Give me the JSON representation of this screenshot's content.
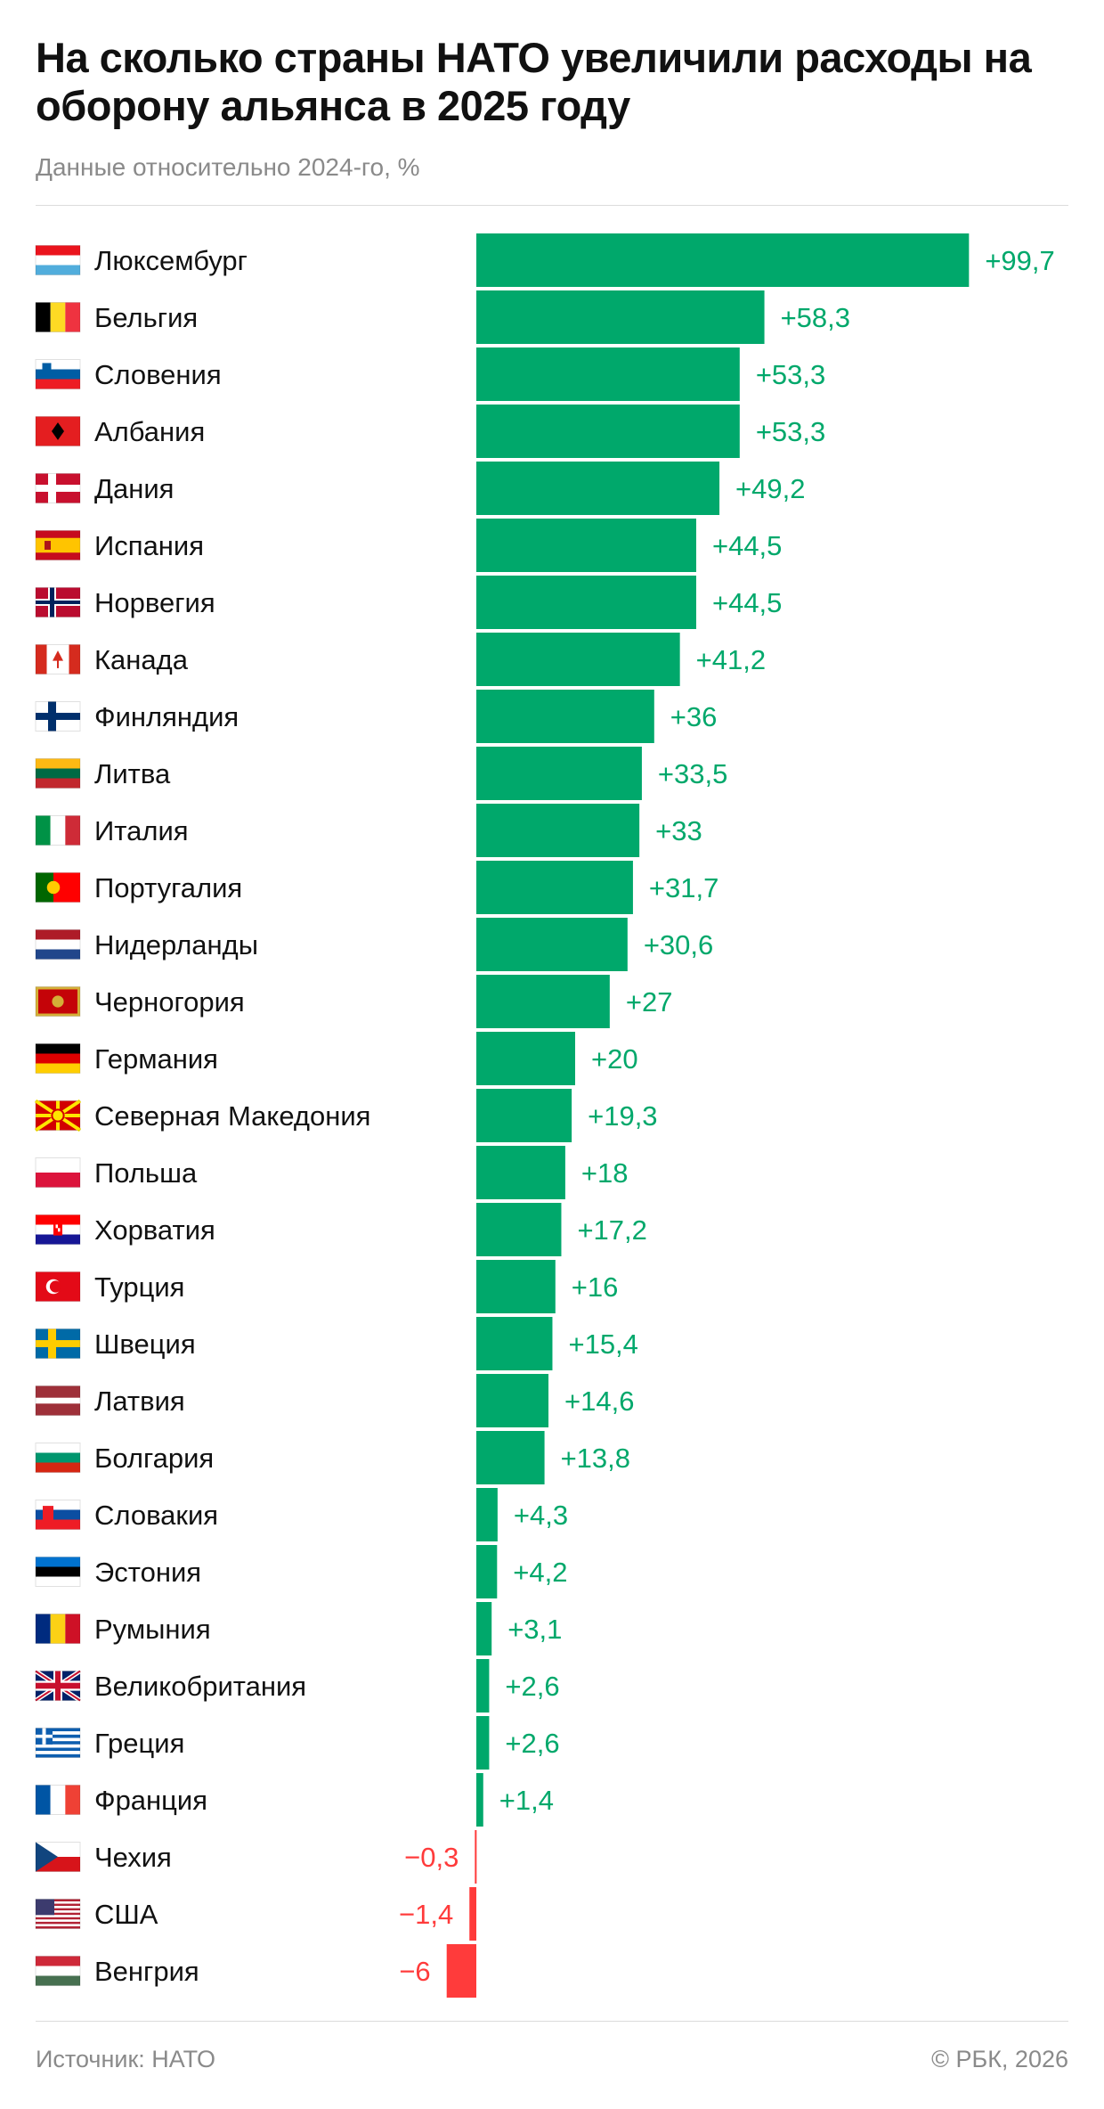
{
  "title": "На сколько страны НАТО увеличили расходы на оборону альянса в 2025 году",
  "subtitle": "Данные относительно 2024-го, %",
  "footer": {
    "source": "Источник: НАТО",
    "copyright": "© РБК, 2026"
  },
  "colors": {
    "positive": "#00a86b",
    "negative": "#ff3b3b",
    "text": "#111111",
    "muted": "#8a8a8a"
  },
  "chart_data": {
    "type": "bar",
    "orientation": "horizontal",
    "title": "На сколько страны НАТО увеличили расходы на оборону альянса в 2025 году",
    "subtitle": "Данные относительно 2024-го, %",
    "categories": [
      "Люксембург",
      "Бельгия",
      "Словения",
      "Албания",
      "Дания",
      "Испания",
      "Норвегия",
      "Канада",
      "Финляндия",
      "Литва",
      "Италия",
      "Португалия",
      "Нидерланды",
      "Черногория",
      "Германия",
      "Северная Македония",
      "Польша",
      "Хорватия",
      "Турция",
      "Швеция",
      "Латвия",
      "Болгария",
      "Словакия",
      "Эстония",
      "Румыния",
      "Великобритания",
      "Греция",
      "Франция",
      "Чехия",
      "США",
      "Венгрия"
    ],
    "values": [
      99.7,
      58.3,
      53.3,
      53.3,
      49.2,
      44.5,
      44.5,
      41.2,
      36,
      33.5,
      33,
      31.7,
      30.6,
      27,
      20,
      19.3,
      18,
      17.2,
      16,
      15.4,
      14.6,
      13.8,
      4.3,
      4.2,
      3.1,
      2.6,
      2.6,
      1.4,
      -0.3,
      -1.4,
      -6
    ],
    "value_labels": [
      "+99,7",
      "+58,3",
      "+53,3",
      "+53,3",
      "+49,2",
      "+44,5",
      "+44,5",
      "+41,2",
      "+36",
      "+33,5",
      "+33",
      "+31,7",
      "+30,6",
      "+27",
      "+20",
      "+19,3",
      "+18",
      "+17,2",
      "+16",
      "+15,4",
      "+14,6",
      "+13,8",
      "+4,3",
      "+4,2",
      "+3,1",
      "+2,6",
      "+2,6",
      "+1,4",
      "−0,3",
      "−1,4",
      "−6"
    ],
    "flag_icons": [
      "flag-luxembourg-icon",
      "flag-belgium-icon",
      "flag-slovenia-icon",
      "flag-albania-icon",
      "flag-denmark-icon",
      "flag-spain-icon",
      "flag-norway-icon",
      "flag-canada-icon",
      "flag-finland-icon",
      "flag-lithuania-icon",
      "flag-italy-icon",
      "flag-portugal-icon",
      "flag-netherlands-icon",
      "flag-montenegro-icon",
      "flag-germany-icon",
      "flag-north-macedonia-icon",
      "flag-poland-icon",
      "flag-croatia-icon",
      "flag-turkey-icon",
      "flag-sweden-icon",
      "flag-latvia-icon",
      "flag-bulgaria-icon",
      "flag-slovakia-icon",
      "flag-estonia-icon",
      "flag-romania-icon",
      "flag-uk-icon",
      "flag-greece-icon",
      "flag-france-icon",
      "flag-czechia-icon",
      "flag-usa-icon",
      "flag-hungary-icon"
    ],
    "xlabel": "",
    "ylabel": "",
    "xlim": [
      -6,
      99.7
    ],
    "grid": false,
    "legend": "none"
  }
}
